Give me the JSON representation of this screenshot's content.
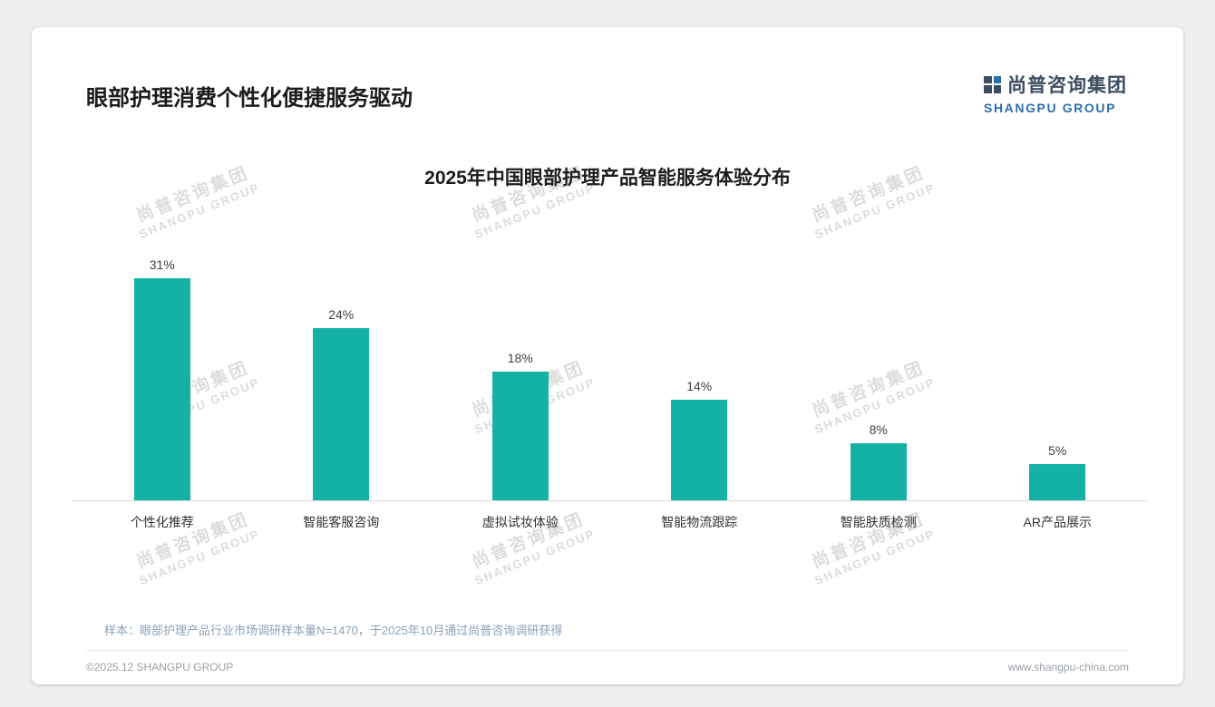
{
  "page": {
    "title": "眼部护理消费个性化便捷服务驱动",
    "sample_note": "样本：眼部护理产品行业市场调研样本量N=1470，于2025年10月通过尚普咨询调研获得",
    "footer_left": "©2025.12 SHANGPU GROUP",
    "footer_right": "www.shangpu-china.com"
  },
  "brand": {
    "name_cn": "尚普咨询集团",
    "name_en": "SHANGPU GROUP",
    "accent_color": "#2c6fad",
    "watermark_line1": "尚普咨询集团",
    "watermark_line2": "SHANGPU GROUP"
  },
  "chart_data": {
    "type": "bar",
    "title": "2025年中国眼部护理产品智能服务体验分布",
    "categories": [
      "个性化推荐",
      "智能客服咨询",
      "虚拟试妆体验",
      "智能物流跟踪",
      "智能肤质检测",
      "AR产品展示"
    ],
    "values": [
      31,
      24,
      18,
      14,
      8,
      5
    ],
    "value_labels": [
      "31%",
      "24%",
      "18%",
      "14%",
      "8%",
      "5%"
    ],
    "xlabel": "",
    "ylabel": "",
    "ylim": [
      0,
      35
    ],
    "grid": false,
    "legend": false,
    "bar_color": "#14b1a5"
  }
}
